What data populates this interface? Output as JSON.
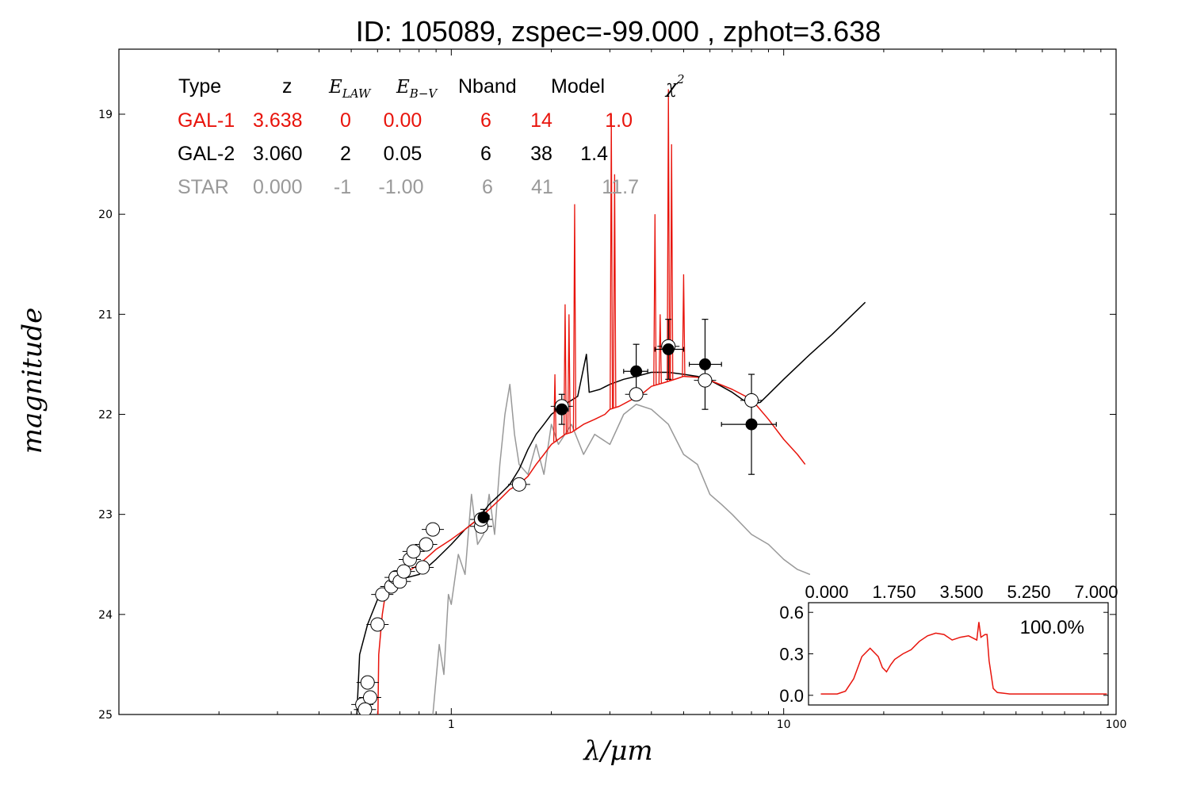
{
  "title": "ID:  105089, zspec=-99.000 , zphot=3.638",
  "colors": {
    "gal1": "#e8140c",
    "gal2": "#000000",
    "star": "#999999",
    "frame": "#000000"
  },
  "chart_data": [
    {
      "type": "line",
      "title": "ID:  105089, zspec=-99.000 , zphot=3.638",
      "xlabel": "λ/μm",
      "ylabel": "magnitude",
      "xscale": "log",
      "xlim": [
        0.1,
        100
      ],
      "ylim": [
        25,
        18.35
      ],
      "y_inverted": true,
      "x_tick_labels": [
        "1",
        "10",
        "100"
      ],
      "y_tick_labels": [
        "19",
        "20",
        "21",
        "22",
        "23",
        "24",
        "25"
      ],
      "y_ticks": [
        19,
        20,
        21,
        22,
        23,
        24,
        25
      ],
      "table": {
        "headers": {
          "type": "Type",
          "z": "z",
          "e_law_main": "E",
          "e_law_sub": "LAW",
          "e_bv_main": "E",
          "e_bv_sub": "B−V",
          "nband": "Nband",
          "model": "Model",
          "chi_main": "χ",
          "chi_sup": "2"
        },
        "rows": [
          {
            "type": "GAL-1",
            "z": "3.638",
            "e_law": "0",
            "e_bv": "0.00",
            "nband": "6",
            "model": "14",
            "chi2": "1.0",
            "color": "#e8140c"
          },
          {
            "type": "GAL-2",
            "z": "3.060",
            "e_law": "2",
            "e_bv": "0.05",
            "nband": "6",
            "model": "38",
            "chi2": "1.4",
            "color": "#000000"
          },
          {
            "type": "STAR",
            "z": "0.000",
            "e_law": "-1",
            "e_bv": "-1.00",
            "nband": "6",
            "model": "41",
            "chi2": "11.7",
            "color": "#999999"
          }
        ]
      },
      "series": [
        {
          "name": "GAL-1",
          "color": "#e8140c",
          "points": [
            [
              0.6,
              25.3
            ],
            [
              0.605,
              24.4
            ],
            [
              0.62,
              24.0
            ],
            [
              0.64,
              23.7
            ],
            [
              0.66,
              23.68
            ],
            [
              0.7,
              23.62
            ],
            [
              0.8,
              23.5
            ],
            [
              0.9,
              23.35
            ],
            [
              1.0,
              23.25
            ],
            [
              1.1,
              23.15
            ],
            [
              1.2,
              23.05
            ],
            [
              1.3,
              22.95
            ],
            [
              1.4,
              22.85
            ],
            [
              1.5,
              22.75
            ],
            [
              1.6,
              22.7
            ],
            [
              1.7,
              22.62
            ],
            [
              1.8,
              22.5
            ],
            [
              1.9,
              22.4
            ],
            [
              2.0,
              22.3
            ],
            [
              2.1,
              22.25
            ],
            [
              2.2,
              22.2
            ],
            [
              2.3,
              22.18
            ],
            [
              2.5,
              22.1
            ],
            [
              2.7,
              22.05
            ],
            [
              2.9,
              22.0
            ],
            [
              3.0,
              21.95
            ],
            [
              3.2,
              21.92
            ],
            [
              3.5,
              21.85
            ],
            [
              3.8,
              21.78
            ],
            [
              4.0,
              21.72
            ],
            [
              4.4,
              21.68
            ],
            [
              4.8,
              21.64
            ],
            [
              5.0,
              21.62
            ],
            [
              5.5,
              21.63
            ],
            [
              6.0,
              21.66
            ],
            [
              7.0,
              21.75
            ],
            [
              8.0,
              21.85
            ],
            [
              9.0,
              22.05
            ],
            [
              10.0,
              22.25
            ],
            [
              11.0,
              22.4
            ],
            [
              11.6,
              22.5
            ]
          ],
          "emission_lines": [
            [
              2.05,
              21.6
            ],
            [
              2.2,
              20.9
            ],
            [
              2.26,
              21.0
            ],
            [
              2.35,
              19.9
            ],
            [
              3.03,
              19.0
            ],
            [
              3.1,
              19.6
            ],
            [
              4.1,
              20.0
            ],
            [
              4.25,
              21.0
            ],
            [
              4.5,
              18.75
            ],
            [
              4.6,
              19.3
            ],
            [
              5.0,
              20.6
            ]
          ]
        },
        {
          "name": "GAL-2",
          "color": "#000000",
          "points": [
            [
              0.52,
              25.0
            ],
            [
              0.53,
              24.4
            ],
            [
              0.56,
              24.1
            ],
            [
              0.6,
              23.85
            ],
            [
              0.65,
              23.7
            ],
            [
              0.7,
              23.65
            ],
            [
              0.8,
              23.6
            ],
            [
              0.9,
              23.45
            ],
            [
              1.0,
              23.3
            ],
            [
              1.1,
              23.15
            ],
            [
              1.2,
              23.05
            ],
            [
              1.3,
              22.9
            ],
            [
              1.4,
              22.8
            ],
            [
              1.5,
              22.7
            ],
            [
              1.6,
              22.55
            ],
            [
              1.7,
              22.35
            ],
            [
              1.8,
              22.2
            ],
            [
              1.9,
              22.1
            ],
            [
              2.0,
              22.0
            ],
            [
              2.2,
              21.9
            ],
            [
              2.4,
              21.82
            ],
            [
              2.55,
              21.4
            ],
            [
              2.6,
              21.78
            ],
            [
              2.8,
              21.75
            ],
            [
              3.0,
              21.7
            ],
            [
              3.3,
              21.65
            ],
            [
              3.6,
              21.62
            ],
            [
              4.0,
              21.58
            ],
            [
              4.5,
              21.58
            ],
            [
              5.0,
              21.6
            ],
            [
              5.5,
              21.62
            ],
            [
              6.0,
              21.66
            ],
            [
              6.5,
              21.72
            ],
            [
              7.0,
              21.78
            ],
            [
              7.5,
              21.85
            ],
            [
              8.0,
              21.9
            ],
            [
              8.5,
              21.88
            ],
            [
              9.0,
              21.8
            ],
            [
              10.0,
              21.65
            ],
            [
              12.0,
              21.4
            ],
            [
              14.0,
              21.2
            ],
            [
              17.6,
              20.88
            ]
          ]
        },
        {
          "name": "STAR",
          "color": "#999999",
          "points": [
            [
              0.88,
              25.0
            ],
            [
              0.92,
              24.3
            ],
            [
              0.95,
              24.6
            ],
            [
              0.98,
              23.8
            ],
            [
              1.0,
              23.9
            ],
            [
              1.05,
              23.4
            ],
            [
              1.1,
              23.6
            ],
            [
              1.15,
              22.8
            ],
            [
              1.2,
              23.3
            ],
            [
              1.25,
              23.2
            ],
            [
              1.3,
              22.8
            ],
            [
              1.35,
              23.2
            ],
            [
              1.4,
              22.5
            ],
            [
              1.45,
              22.0
            ],
            [
              1.5,
              21.7
            ],
            [
              1.55,
              22.2
            ],
            [
              1.6,
              22.5
            ],
            [
              1.7,
              22.6
            ],
            [
              1.8,
              22.3
            ],
            [
              1.9,
              22.6
            ],
            [
              2.0,
              22.1
            ],
            [
              2.1,
              22.3
            ],
            [
              2.3,
              22.1
            ],
            [
              2.5,
              22.4
            ],
            [
              2.7,
              22.2
            ],
            [
              3.0,
              22.3
            ],
            [
              3.3,
              22.0
            ],
            [
              3.6,
              21.9
            ],
            [
              4.0,
              21.95
            ],
            [
              4.5,
              22.1
            ],
            [
              5.0,
              22.4
            ],
            [
              5.5,
              22.5
            ],
            [
              6.0,
              22.8
            ],
            [
              6.5,
              22.9
            ],
            [
              7.0,
              23.0
            ],
            [
              8.0,
              23.2
            ],
            [
              9.0,
              23.3
            ],
            [
              10.0,
              23.45
            ],
            [
              11.0,
              23.55
            ],
            [
              12.0,
              23.6
            ]
          ]
        }
      ],
      "observed_points": {
        "style": "filled black circle with error bars",
        "points": [
          {
            "x": 1.25,
            "y": 23.03,
            "xerr": [
              1.2,
              1.3
            ],
            "yerr": [
              22.95,
              23.1
            ]
          },
          {
            "x": 2.15,
            "y": 21.95,
            "xerr": [
              2.05,
              2.25
            ],
            "yerr": [
              21.8,
              22.1
            ]
          },
          {
            "x": 3.6,
            "y": 21.57,
            "xerr": [
              3.3,
              3.9
            ],
            "yerr": [
              21.3,
              21.85
            ]
          },
          {
            "x": 4.5,
            "y": 21.35,
            "xerr": [
              4.1,
              5.0
            ],
            "yerr": [
              21.05,
              21.65
            ]
          },
          {
            "x": 5.8,
            "y": 21.5,
            "xerr": [
              5.2,
              6.5
            ],
            "yerr": [
              21.05,
              21.95
            ]
          },
          {
            "x": 8.0,
            "y": 22.1,
            "xerr": [
              6.5,
              9.5
            ],
            "yerr": [
              21.6,
              22.6
            ]
          }
        ]
      },
      "model_points": {
        "style": "open white circle",
        "points": [
          [
            0.54,
            24.9
          ],
          [
            0.56,
            24.68
          ],
          [
            0.57,
            24.83
          ],
          [
            0.55,
            24.95
          ],
          [
            0.6,
            24.1
          ],
          [
            0.62,
            23.8
          ],
          [
            0.66,
            23.72
          ],
          [
            0.68,
            23.63
          ],
          [
            0.7,
            23.67
          ],
          [
            0.72,
            23.57
          ],
          [
            0.75,
            23.45
          ],
          [
            0.77,
            23.37
          ],
          [
            0.82,
            23.53
          ],
          [
            0.84,
            23.3
          ],
          [
            0.88,
            23.15
          ],
          [
            1.23,
            23.12
          ],
          [
            1.23,
            23.05
          ],
          [
            1.6,
            22.7
          ],
          [
            2.15,
            21.92
          ],
          [
            3.6,
            21.8
          ],
          [
            4.5,
            21.32
          ],
          [
            5.8,
            21.66
          ],
          [
            8.0,
            21.86
          ]
        ]
      }
    },
    {
      "type": "line",
      "title": "",
      "x_tick_labels": [
        "0.000",
        "1.750",
        "3.500",
        "5.250",
        "7.000"
      ],
      "y_tick_labels": [
        "0.0",
        "0.3",
        "0.6"
      ],
      "xlim": [
        -0.3,
        7.0
      ],
      "ylim": [
        -0.07,
        0.67
      ],
      "annotation": "100.0%",
      "series": [
        {
          "name": "",
          "color": "#e8140c",
          "x": [
            0.0,
            0.4,
            0.6,
            0.8,
            1.0,
            1.2,
            1.4,
            1.5,
            1.6,
            1.7,
            1.8,
            2.0,
            2.2,
            2.4,
            2.6,
            2.8,
            3.0,
            3.2,
            3.4,
            3.6,
            3.8,
            3.85,
            3.9,
            4.0,
            4.05,
            4.1,
            4.15,
            4.2,
            4.3,
            4.6,
            5.0,
            6.0,
            6.97
          ],
          "y": [
            0.01,
            0.01,
            0.03,
            0.12,
            0.28,
            0.34,
            0.28,
            0.2,
            0.17,
            0.22,
            0.26,
            0.3,
            0.33,
            0.39,
            0.43,
            0.45,
            0.44,
            0.4,
            0.42,
            0.43,
            0.4,
            0.53,
            0.42,
            0.44,
            0.44,
            0.25,
            0.15,
            0.05,
            0.02,
            0.01,
            0.01,
            0.01,
            0.01
          ]
        }
      ]
    }
  ]
}
